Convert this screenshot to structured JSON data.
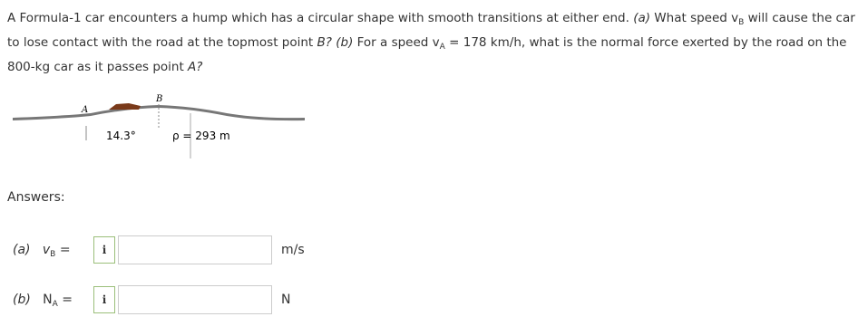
{
  "question": [
    "A Formula-1 car encounters a hump which has a circular shape with smooth transitions at either end. ",
    "(a)",
    " What speed ",
    "v",
    "B",
    " will cause the car to lose contact with the road at the topmost point ",
    "B?",
    " ",
    "(b)",
    " For a speed ",
    "v",
    "A",
    " = 178 km/h, what is the normal force exerted by the road on the 800-kg car as it passes point ",
    "A?"
  ],
  "figure": {
    "point_a": "A",
    "point_b": "B",
    "angle": "14.3°",
    "radius": "ρ = 293 m"
  },
  "answers": {
    "heading": "Answers:",
    "items": [
      {
        "part": "(a)",
        "symbol": "v",
        "subscript": "B",
        "equals": "=",
        "info": "i",
        "unit": "m/s"
      },
      {
        "part": "(b)",
        "symbol": "N",
        "subscript": "A",
        "equals": "=",
        "info": "i",
        "unit": "N"
      }
    ]
  }
}
